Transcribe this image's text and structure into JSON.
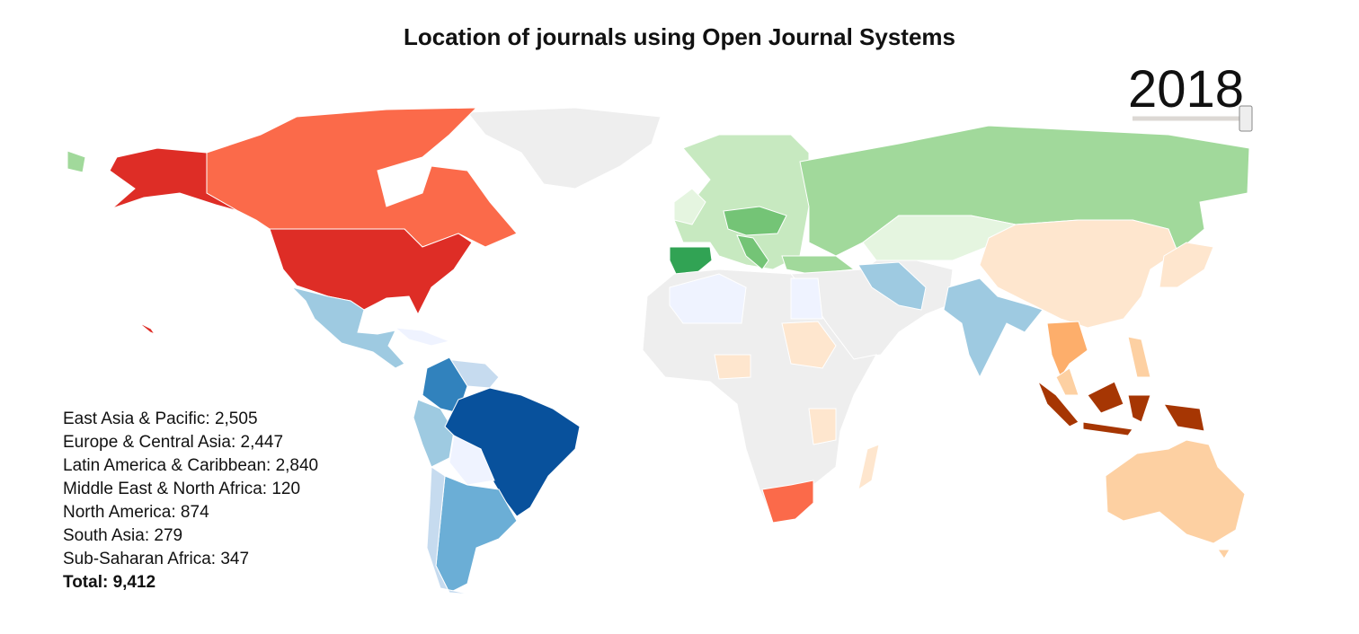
{
  "title": "Location of journals using Open Journal Systems",
  "year": "2018",
  "regions": [
    "East Asia & Pacific: 2,505",
    "Europe & Central Asia: 2,447",
    "Latin America & Caribbean: 2,840",
    "Middle East & North Africa: 120",
    "North America: 874",
    "South Asia: 279",
    "Sub-Saharan Africa: 347"
  ],
  "total": "Total: 9,412"
}
